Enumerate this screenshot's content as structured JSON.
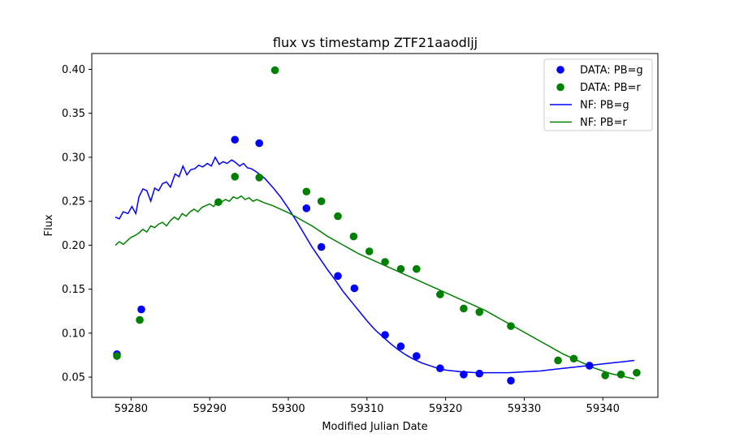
{
  "chart_data": {
    "type": "scatter",
    "title": "flux vs timestamp ZTF21aaodljj",
    "xlabel": "Modified Julian Date",
    "ylabel": "Flux",
    "xlim": [
      59275,
      59347
    ],
    "ylim": [
      0.027,
      0.418
    ],
    "x_ticks": [
      59280,
      59290,
      59300,
      59310,
      59320,
      59330,
      59340
    ],
    "y_ticks": [
      0.05,
      0.1,
      0.15,
      0.2,
      0.25,
      0.3,
      0.35,
      0.4
    ],
    "grid": false,
    "legend_position": "top-right",
    "colors": {
      "g": "#0000ff",
      "r": "#008000"
    },
    "series": [
      {
        "name": "DATA: PB=g",
        "kind": "scatter",
        "color": "#0000ff",
        "points": [
          [
            59278.2,
            0.076
          ],
          [
            59281.3,
            0.127
          ],
          [
            59293.2,
            0.32
          ],
          [
            59296.3,
            0.316
          ],
          [
            59302.3,
            0.242
          ],
          [
            59304.2,
            0.198
          ],
          [
            59306.3,
            0.165
          ],
          [
            59308.4,
            0.151
          ],
          [
            59312.3,
            0.098
          ],
          [
            59314.3,
            0.085
          ],
          [
            59316.3,
            0.074
          ],
          [
            59319.3,
            0.06
          ],
          [
            59322.3,
            0.053
          ],
          [
            59324.3,
            0.054
          ],
          [
            59328.3,
            0.046
          ],
          [
            59338.3,
            0.063
          ]
        ]
      },
      {
        "name": "DATA: PB=r",
        "kind": "scatter",
        "color": "#008000",
        "points": [
          [
            59278.2,
            0.074
          ],
          [
            59281.1,
            0.115
          ],
          [
            59291.1,
            0.249
          ],
          [
            59293.2,
            0.278
          ],
          [
            59296.3,
            0.277
          ],
          [
            59298.3,
            0.399
          ],
          [
            59302.3,
            0.261
          ],
          [
            59304.2,
            0.25
          ],
          [
            59306.3,
            0.233
          ],
          [
            59308.3,
            0.21
          ],
          [
            59310.3,
            0.193
          ],
          [
            59312.3,
            0.181
          ],
          [
            59314.3,
            0.173
          ],
          [
            59316.3,
            0.173
          ],
          [
            59319.3,
            0.144
          ],
          [
            59322.3,
            0.128
          ],
          [
            59324.3,
            0.124
          ],
          [
            59328.3,
            0.108
          ],
          [
            59334.3,
            0.069
          ],
          [
            59336.3,
            0.071
          ],
          [
            59340.3,
            0.052
          ],
          [
            59342.3,
            0.053
          ],
          [
            59344.3,
            0.055
          ]
        ]
      },
      {
        "name": "NF: PB=g",
        "kind": "line",
        "color": "#0000ff",
        "points": [
          [
            59278.0,
            0.232
          ],
          [
            59278.5,
            0.23
          ],
          [
            59279.0,
            0.238
          ],
          [
            59279.6,
            0.236
          ],
          [
            59280.1,
            0.244
          ],
          [
            59280.6,
            0.236
          ],
          [
            59281.0,
            0.255
          ],
          [
            59281.5,
            0.264
          ],
          [
            59282.0,
            0.262
          ],
          [
            59282.5,
            0.25
          ],
          [
            59283.0,
            0.265
          ],
          [
            59283.5,
            0.262
          ],
          [
            59284.0,
            0.27
          ],
          [
            59284.5,
            0.272
          ],
          [
            59285.0,
            0.266
          ],
          [
            59285.6,
            0.281
          ],
          [
            59286.1,
            0.278
          ],
          [
            59286.6,
            0.29
          ],
          [
            59287.1,
            0.28
          ],
          [
            59287.6,
            0.286
          ],
          [
            59288.1,
            0.287
          ],
          [
            59288.6,
            0.291
          ],
          [
            59289.1,
            0.289
          ],
          [
            59289.7,
            0.293
          ],
          [
            59290.2,
            0.29
          ],
          [
            59290.7,
            0.3
          ],
          [
            59291.2,
            0.292
          ],
          [
            59291.7,
            0.295
          ],
          [
            59292.2,
            0.293
          ],
          [
            59292.8,
            0.297
          ],
          [
            59293.3,
            0.294
          ],
          [
            59293.8,
            0.29
          ],
          [
            59294.3,
            0.293
          ],
          [
            59294.8,
            0.288
          ],
          [
            59295.3,
            0.287
          ],
          [
            59296.0,
            0.283
          ],
          [
            59297.0,
            0.276
          ],
          [
            59298.0,
            0.266
          ],
          [
            59299.0,
            0.255
          ],
          [
            59300.0,
            0.242
          ],
          [
            59301.0,
            0.228
          ],
          [
            59302.0,
            0.213
          ],
          [
            59303.0,
            0.198
          ],
          [
            59304.0,
            0.185
          ],
          [
            59305.0,
            0.172
          ],
          [
            59306.0,
            0.16
          ],
          [
            59307.0,
            0.147
          ],
          [
            59308.0,
            0.136
          ],
          [
            59309.0,
            0.125
          ],
          [
            59310.0,
            0.114
          ],
          [
            59311.0,
            0.104
          ],
          [
            59312.0,
            0.096
          ],
          [
            59313.0,
            0.088
          ],
          [
            59314.0,
            0.081
          ],
          [
            59315.0,
            0.075
          ],
          [
            59316.0,
            0.07
          ],
          [
            59317.0,
            0.066
          ],
          [
            59318.0,
            0.063
          ],
          [
            59319.0,
            0.06
          ],
          [
            59320.0,
            0.058
          ],
          [
            59322.0,
            0.056
          ],
          [
            59324.0,
            0.055
          ],
          [
            59326.0,
            0.055
          ],
          [
            59328.0,
            0.055
          ],
          [
            59330.0,
            0.056
          ],
          [
            59332.0,
            0.057
          ],
          [
            59334.0,
            0.059
          ],
          [
            59336.0,
            0.061
          ],
          [
            59338.0,
            0.063
          ],
          [
            59340.0,
            0.065
          ],
          [
            59342.0,
            0.067
          ],
          [
            59344.0,
            0.069
          ]
        ]
      },
      {
        "name": "NF: PB=r",
        "kind": "line",
        "color": "#008000",
        "points": [
          [
            59278.0,
            0.2
          ],
          [
            59278.5,
            0.204
          ],
          [
            59279.0,
            0.201
          ],
          [
            59279.5,
            0.205
          ],
          [
            59280.0,
            0.209
          ],
          [
            59280.5,
            0.211
          ],
          [
            59281.0,
            0.214
          ],
          [
            59281.5,
            0.218
          ],
          [
            59282.0,
            0.215
          ],
          [
            59282.5,
            0.222
          ],
          [
            59283.0,
            0.22
          ],
          [
            59283.5,
            0.224
          ],
          [
            59284.0,
            0.226
          ],
          [
            59284.5,
            0.222
          ],
          [
            59285.0,
            0.228
          ],
          [
            59285.5,
            0.232
          ],
          [
            59286.0,
            0.229
          ],
          [
            59286.5,
            0.236
          ],
          [
            59287.0,
            0.233
          ],
          [
            59287.5,
            0.238
          ],
          [
            59288.0,
            0.241
          ],
          [
            59288.5,
            0.238
          ],
          [
            59289.0,
            0.243
          ],
          [
            59289.5,
            0.245
          ],
          [
            59290.0,
            0.247
          ],
          [
            59290.5,
            0.244
          ],
          [
            59291.0,
            0.25
          ],
          [
            59291.5,
            0.249
          ],
          [
            59292.0,
            0.252
          ],
          [
            59292.5,
            0.25
          ],
          [
            59293.0,
            0.255
          ],
          [
            59293.5,
            0.253
          ],
          [
            59294.0,
            0.256
          ],
          [
            59294.5,
            0.252
          ],
          [
            59295.0,
            0.254
          ],
          [
            59295.5,
            0.25
          ],
          [
            59296.0,
            0.252
          ],
          [
            59297.0,
            0.248
          ],
          [
            59298.0,
            0.245
          ],
          [
            59299.0,
            0.241
          ],
          [
            59300.0,
            0.237
          ],
          [
            59301.0,
            0.232
          ],
          [
            59302.0,
            0.227
          ],
          [
            59303.0,
            0.222
          ],
          [
            59304.0,
            0.216
          ],
          [
            59305.0,
            0.21
          ],
          [
            59306.0,
            0.205
          ],
          [
            59307.0,
            0.2
          ],
          [
            59308.0,
            0.195
          ],
          [
            59309.0,
            0.19
          ],
          [
            59310.0,
            0.186
          ],
          [
            59311.0,
            0.182
          ],
          [
            59312.0,
            0.178
          ],
          [
            59313.0,
            0.174
          ],
          [
            59314.0,
            0.17
          ],
          [
            59315.0,
            0.166
          ],
          [
            59316.0,
            0.162
          ],
          [
            59317.0,
            0.158
          ],
          [
            59318.0,
            0.154
          ],
          [
            59319.0,
            0.15
          ],
          [
            59320.0,
            0.146
          ],
          [
            59321.0,
            0.142
          ],
          [
            59322.0,
            0.138
          ],
          [
            59323.0,
            0.134
          ],
          [
            59324.0,
            0.13
          ],
          [
            59325.0,
            0.126
          ],
          [
            59326.0,
            0.121
          ],
          [
            59327.0,
            0.116
          ],
          [
            59328.0,
            0.111
          ],
          [
            59329.0,
            0.106
          ],
          [
            59330.0,
            0.101
          ],
          [
            59331.0,
            0.096
          ],
          [
            59332.0,
            0.091
          ],
          [
            59333.0,
            0.086
          ],
          [
            59334.0,
            0.081
          ],
          [
            59335.0,
            0.076
          ],
          [
            59336.0,
            0.072
          ],
          [
            59337.0,
            0.068
          ],
          [
            59338.0,
            0.064
          ],
          [
            59339.0,
            0.06
          ],
          [
            59340.0,
            0.057
          ],
          [
            59341.0,
            0.054
          ],
          [
            59342.0,
            0.052
          ],
          [
            59343.0,
            0.05
          ],
          [
            59344.0,
            0.048
          ]
        ]
      }
    ]
  }
}
